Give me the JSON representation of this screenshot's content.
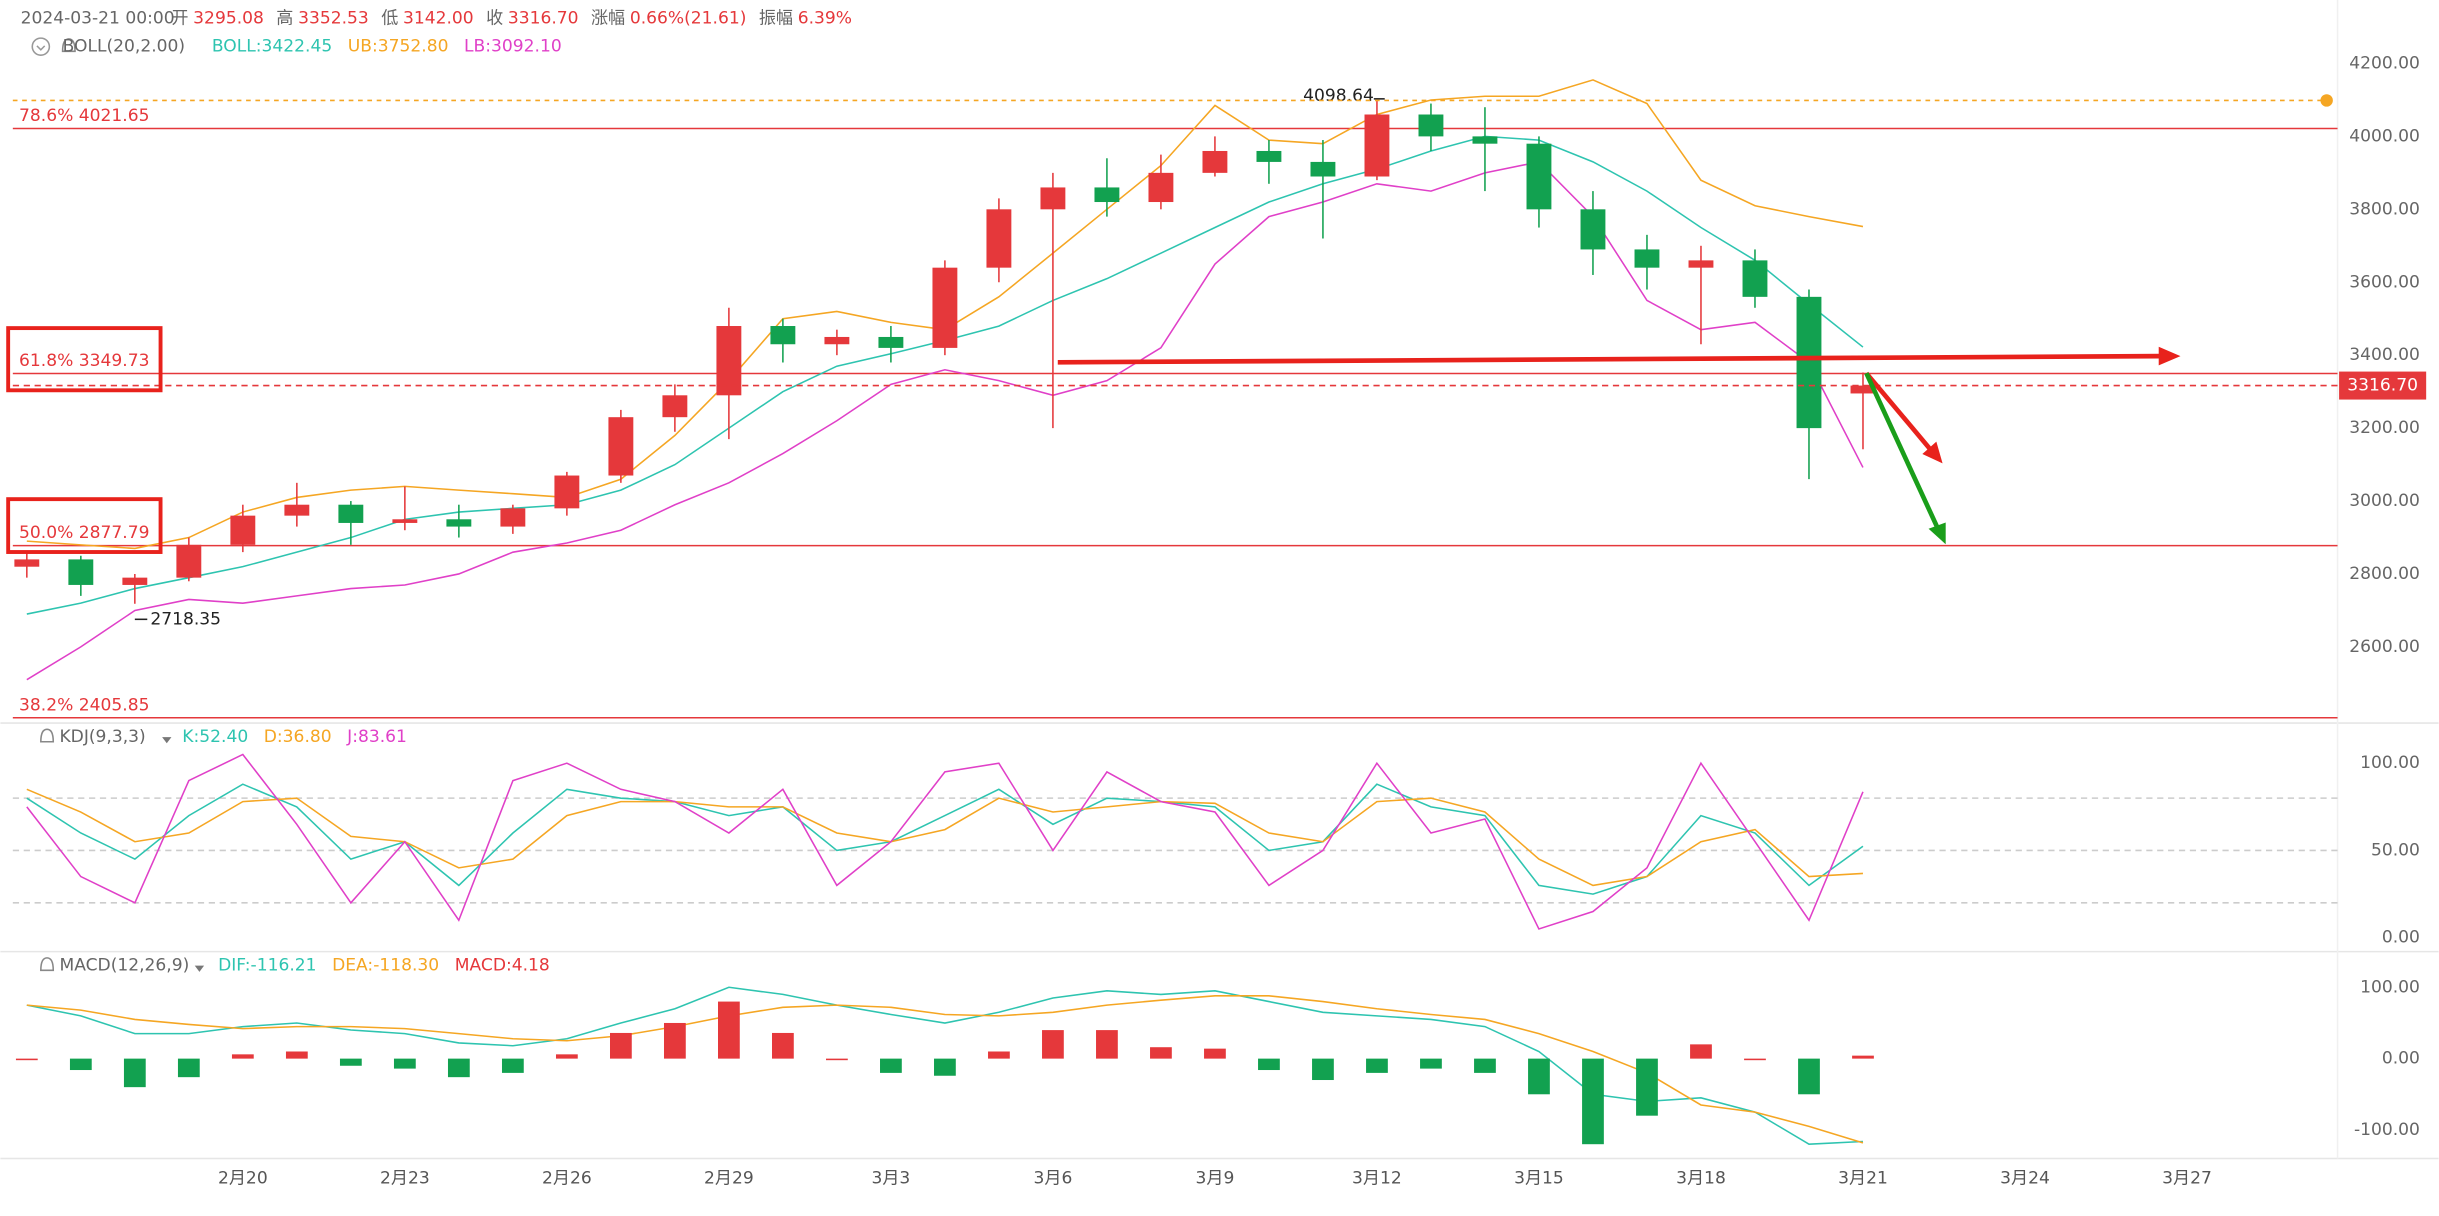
{
  "chart_data": [
    {
      "type": "candlestick",
      "header": {
        "time": "2024-03-21 00:00",
        "fields": [
          {
            "label": "开",
            "value": "3295.08"
          },
          {
            "label": "高",
            "value": "3352.53"
          },
          {
            "label": "低",
            "value": "3142.00"
          },
          {
            "label": "收",
            "value": "3316.70"
          },
          {
            "label": "涨幅",
            "value": "0.66%(21.61)"
          },
          {
            "label": "振幅",
            "value": "6.39%"
          }
        ]
      },
      "title": "BOLL(20,2.00)",
      "categories": [
        null,
        null,
        null,
        null,
        "2月20",
        null,
        null,
        "2月23",
        null,
        null,
        "2月26",
        null,
        null,
        "2月29",
        null,
        null,
        "3月3",
        null,
        null,
        "3月6",
        null,
        null,
        "3月9",
        null,
        null,
        "3月12",
        null,
        null,
        "3月15",
        null,
        null,
        "3月18",
        null,
        null,
        "3月21",
        null,
        null,
        "3月24",
        null,
        null,
        "3月27",
        null
      ],
      "open": [
        2820,
        2840,
        2770,
        2790,
        2880,
        2960,
        2990,
        2940,
        2950,
        2930,
        2980,
        3070,
        3230,
        3290,
        3480,
        3430,
        3450,
        3420,
        3640,
        3800,
        3860,
        3820,
        3900,
        3960,
        3930,
        3890,
        4060,
        4000,
        3980,
        3800,
        3690,
        3640,
        3660,
        3560,
        3295.08,
        null,
        null,
        null,
        null,
        null,
        null,
        null
      ],
      "high": [
        2860,
        2850,
        2800,
        2900,
        2990,
        3050,
        3000,
        3040,
        2990,
        2990,
        3080,
        3250,
        3320,
        3530,
        3500,
        3470,
        3480,
        3660,
        3830,
        3900,
        3940,
        3950,
        4000,
        3990,
        3990,
        4098.64,
        4090,
        4080,
        4000,
        3850,
        3730,
        3700,
        3690,
        3580,
        3352.53,
        null,
        null,
        null,
        null,
        null,
        null,
        null
      ],
      "low": [
        2790,
        2740,
        2718.35,
        2780,
        2860,
        2930,
        2880,
        2920,
        2900,
        2910,
        2960,
        3050,
        3190,
        3170,
        3380,
        3400,
        3380,
        3400,
        3600,
        3200,
        3780,
        3800,
        3890,
        3870,
        3720,
        3880,
        3960,
        3850,
        3750,
        3620,
        3580,
        3430,
        3530,
        3060,
        3142,
        null,
        null,
        null,
        null,
        null,
        null,
        null
      ],
      "close": [
        2840,
        2770,
        2790,
        2880,
        2960,
        2990,
        2940,
        2950,
        2930,
        2980,
        3070,
        3230,
        3290,
        3480,
        3430,
        3450,
        3420,
        3640,
        3800,
        3860,
        3820,
        3900,
        3960,
        3930,
        3890,
        4060,
        4000,
        3980,
        3800,
        3690,
        3640,
        3660,
        3560,
        3200,
        3316.7,
        null,
        null,
        null,
        null,
        null,
        null,
        null
      ],
      "up_color": "#e5383b",
      "down_color": "#12a150",
      "series": [
        {
          "name": "BOLL:3422.45",
          "color": "#2ec4b0",
          "values": [
            2690,
            2720,
            2760,
            2790,
            2820,
            2860,
            2900,
            2950,
            2970,
            2980,
            2990,
            3030,
            3100,
            3200,
            3300,
            3370,
            3404,
            3440,
            3480,
            3550,
            3610,
            3680,
            3750,
            3820,
            3870,
            3910,
            3960,
            4000,
            3990,
            3930,
            3850,
            3750,
            3660,
            3540,
            3422.45,
            null,
            null,
            null,
            null,
            null,
            null,
            null
          ]
        },
        {
          "name": "UB:3752.80",
          "color": "#f5a623",
          "values": [
            2890,
            2880,
            2870,
            2900,
            2970,
            3010,
            3030,
            3040,
            3030,
            3020,
            3010,
            3060,
            3180,
            3330,
            3500,
            3520,
            3490,
            3470,
            3560,
            3680,
            3800,
            3920,
            4085,
            3990,
            3980,
            4060,
            4100,
            4110,
            4110,
            4155,
            4090,
            3880,
            3810,
            3780,
            3752.8,
            null,
            null,
            null,
            null,
            null,
            null,
            null
          ]
        },
        {
          "name": "LB:3092.10",
          "color": "#e040c8",
          "values": [
            2510,
            2600,
            2700,
            2730,
            2720,
            2740,
            2760,
            2770,
            2800,
            2860,
            2885,
            2920,
            2990,
            3050,
            3130,
            3220,
            3320,
            3360,
            3330,
            3290,
            3330,
            3420,
            3650,
            3780,
            3820,
            3870,
            3850,
            3900,
            3930,
            3780,
            3550,
            3470,
            3490,
            3380,
            3092.1,
            null,
            null,
            null,
            null,
            null,
            null,
            null
          ]
        }
      ],
      "levels": [
        {
          "label": "78.6% 4021.65",
          "value": 4021.65
        },
        {
          "label": "61.8% 3349.73",
          "value": 3349.73
        },
        {
          "label": "50.0% 2877.79",
          "value": 2877.79
        },
        {
          "label": "38.2% 2405.85",
          "value": 2405.85
        }
      ],
      "level_color": "#e5383b",
      "ylim": [
        2404,
        4374
      ],
      "yticks": [
        {
          "value": 2600,
          "label": "2600.00"
        },
        {
          "value": 2800,
          "label": "2800.00"
        },
        {
          "value": 3000,
          "label": "3000.00"
        },
        {
          "value": 3200,
          "label": "3200.00"
        },
        {
          "value": 3400,
          "label": "3400.00"
        },
        {
          "value": 3600,
          "label": "3600.00"
        },
        {
          "value": 3800,
          "label": "3800.00"
        },
        {
          "value": 4000,
          "label": "4000.00"
        },
        {
          "value": 4200,
          "label": "4200.00"
        }
      ]
    },
    {
      "type": "line",
      "title": "KDJ(9,3,3)",
      "series": [
        {
          "name": "K:52.40",
          "color": "#2ec4b0",
          "values": [
            80,
            60,
            45,
            70,
            88,
            75,
            45,
            55,
            30,
            60,
            85,
            80,
            78,
            70,
            75,
            50,
            55,
            70,
            85,
            65,
            80,
            78,
            75,
            50,
            55,
            88,
            75,
            70,
            30,
            25,
            35,
            70,
            60,
            30,
            52.4,
            null,
            null,
            null,
            null,
            null,
            null,
            null
          ]
        },
        {
          "name": "D:36.80",
          "color": "#f5a623",
          "values": [
            85,
            72,
            55,
            60,
            78,
            80,
            58,
            55,
            40,
            45,
            70,
            78,
            78,
            75,
            75,
            60,
            55,
            62,
            80,
            72,
            75,
            78,
            77,
            60,
            55,
            78,
            80,
            72,
            45,
            30,
            35,
            55,
            62,
            35,
            36.8,
            null,
            null,
            null,
            null,
            null,
            null,
            null
          ]
        },
        {
          "name": "J:83.61",
          "color": "#e040c8",
          "values": [
            75,
            35,
            20,
            90,
            105,
            65,
            20,
            55,
            10,
            90,
            100,
            85,
            78,
            60,
            85,
            30,
            55,
            95,
            100,
            50,
            95,
            78,
            72,
            30,
            50,
            100,
            60,
            68,
            5,
            15,
            40,
            100,
            55,
            10,
            83.61,
            null,
            null,
            null,
            null,
            null,
            null,
            null
          ]
        }
      ],
      "reference_lines": [
        20,
        50,
        80
      ],
      "ylim": [
        -8,
        123
      ],
      "yticks": [
        {
          "value": 0,
          "label": "0.00"
        },
        {
          "value": 50,
          "label": "50.00"
        },
        {
          "value": 100,
          "label": "100.00"
        }
      ]
    },
    {
      "type": "macd",
      "title": "MACD(12,26,9)",
      "series": [
        {
          "name": "DIF:-116.21",
          "color": "#2ec4b0",
          "values": [
            75,
            60,
            35,
            35,
            45,
            50,
            40,
            35,
            22,
            18,
            28,
            50,
            70,
            100,
            90,
            75,
            62,
            50,
            65,
            85,
            95,
            90,
            95,
            80,
            65,
            60,
            55,
            45,
            10,
            -50,
            -60,
            -55,
            -75,
            -120,
            -116.21,
            null,
            null,
            null,
            null,
            null,
            null,
            null
          ]
        },
        {
          "name": "DEA:-118.30",
          "color": "#f5a623",
          "values": [
            75,
            68,
            55,
            48,
            42,
            45,
            45,
            42,
            35,
            28,
            25,
            32,
            45,
            60,
            72,
            75,
            72,
            62,
            60,
            65,
            75,
            82,
            88,
            88,
            80,
            70,
            62,
            55,
            35,
            10,
            -20,
            -65,
            -75,
            -95,
            -118.3,
            null,
            null,
            null,
            null,
            null,
            null,
            null
          ]
        },
        {
          "name": "MACD:4.18",
          "color": "#e5383b",
          "down_color": "#12a150",
          "bars": true,
          "values": [
            0,
            -16,
            -40,
            -26,
            6,
            10,
            -10,
            -14,
            -26,
            -20,
            6,
            36,
            50,
            80,
            36,
            0,
            -20,
            -24,
            10,
            40,
            40,
            16,
            14,
            -16,
            -30,
            -20,
            -14,
            -20,
            -50,
            -120,
            -80,
            20,
            0,
            -50,
            4.18,
            null,
            null,
            null,
            null,
            null,
            null,
            null
          ]
        }
      ],
      "ylim": [
        -140,
        150
      ],
      "yticks": [
        {
          "value": -100,
          "label": "-100.00"
        },
        {
          "value": 0,
          "label": "0.00"
        },
        {
          "value": 100,
          "label": "100.00"
        }
      ]
    }
  ]
}
